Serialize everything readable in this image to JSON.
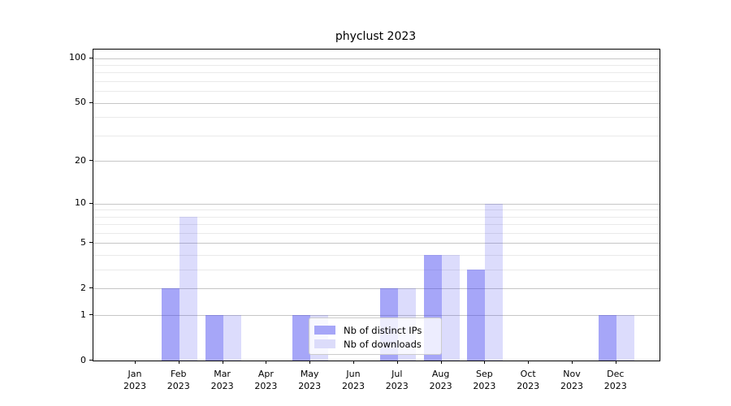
{
  "chart_data": {
    "type": "bar",
    "title": "phyclust 2023",
    "scale": "log1p",
    "categories": [
      "Jan",
      "Feb",
      "Mar",
      "Apr",
      "May",
      "Jun",
      "Jul",
      "Aug",
      "Sep",
      "Oct",
      "Nov",
      "Dec"
    ],
    "x_year_line": "2023",
    "series": [
      {
        "name": "Nb of distinct IPs",
        "color": "#a6a6f8",
        "fill": "rgba(60,60,240,0.46)",
        "values": [
          0,
          2,
          1,
          0,
          1,
          0,
          2,
          4,
          3,
          0,
          0,
          1
        ]
      },
      {
        "name": "Nb of downloads",
        "color": "#dcdcfa",
        "fill": "rgba(60,60,240,0.18)",
        "values": [
          0,
          8,
          1,
          0,
          1,
          0,
          2,
          4,
          10,
          0,
          0,
          1
        ]
      }
    ],
    "y_ticks": [
      0,
      1,
      2,
      5,
      10,
      20,
      50,
      100
    ],
    "y_minor_gridlines": [
      3,
      4,
      6,
      7,
      8,
      9,
      30,
      40,
      60,
      70,
      80,
      90
    ],
    "ylim": [
      0,
      115
    ],
    "xlabel": "",
    "ylabel": "",
    "grid": true,
    "legend_position": "inside-bottom-center",
    "colors": {
      "major_grid": "#c6c6c6",
      "minor_grid": "#eaeaea",
      "spine": "#000000",
      "background": "#ffffff"
    }
  }
}
